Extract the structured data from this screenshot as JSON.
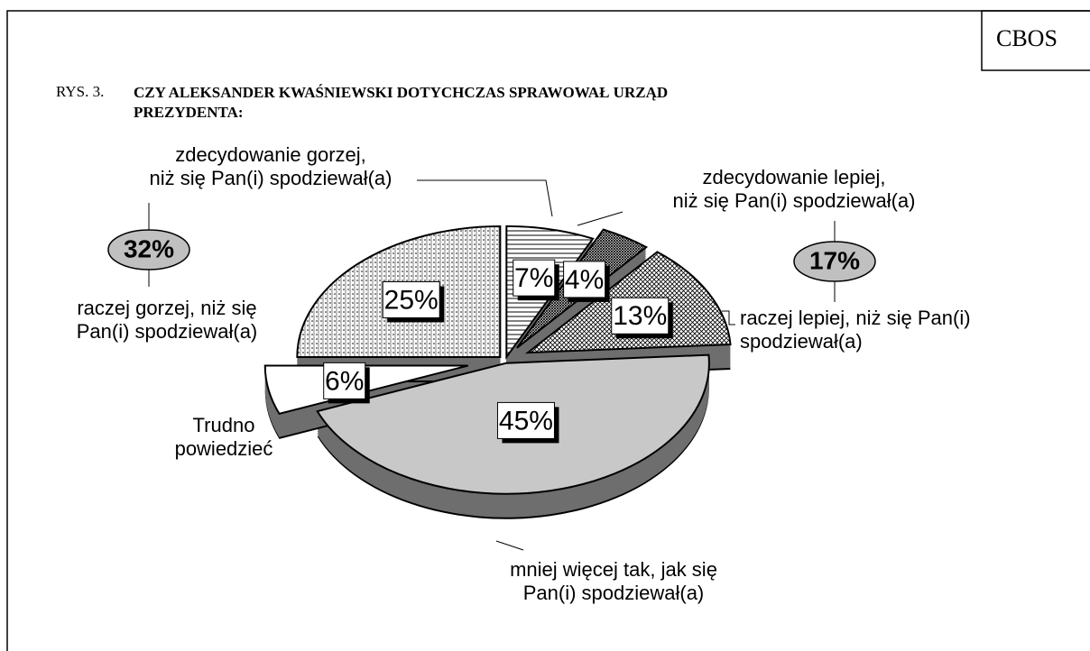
{
  "chart_data": {
    "type": "pie",
    "source": "CBOS",
    "figure_label": "RYS. 3.",
    "title": "CZY ALEKSANDER KWAŚNIEWSKI DOTYCHCZAS SPRAWOWAŁ URZĄD PREZYDENTA:",
    "categories": [
      "zdecydowanie gorzej,\nniż się Pan(i) spodziewał(a)",
      "zdecydowanie lepiej,\nniż się Pan(i) spodziewał(a)",
      "raczej lepiej, niż się Pan(i)\nspodziewał(a)",
      "mniej więcej tak, jak się\nPan(i) spodziewał(a)",
      "Trudno\npowiedzieć",
      "raczej gorzej, niż się\nPan(i) spodziewał(a)"
    ],
    "values": [
      7,
      4,
      13,
      45,
      6,
      25
    ],
    "value_labels": [
      "7%",
      "4%",
      "13%",
      "45%",
      "6%",
      "25%"
    ],
    "groups": {
      "values": [
        32,
        17
      ],
      "value_labels": [
        "32%",
        "17%"
      ]
    }
  }
}
